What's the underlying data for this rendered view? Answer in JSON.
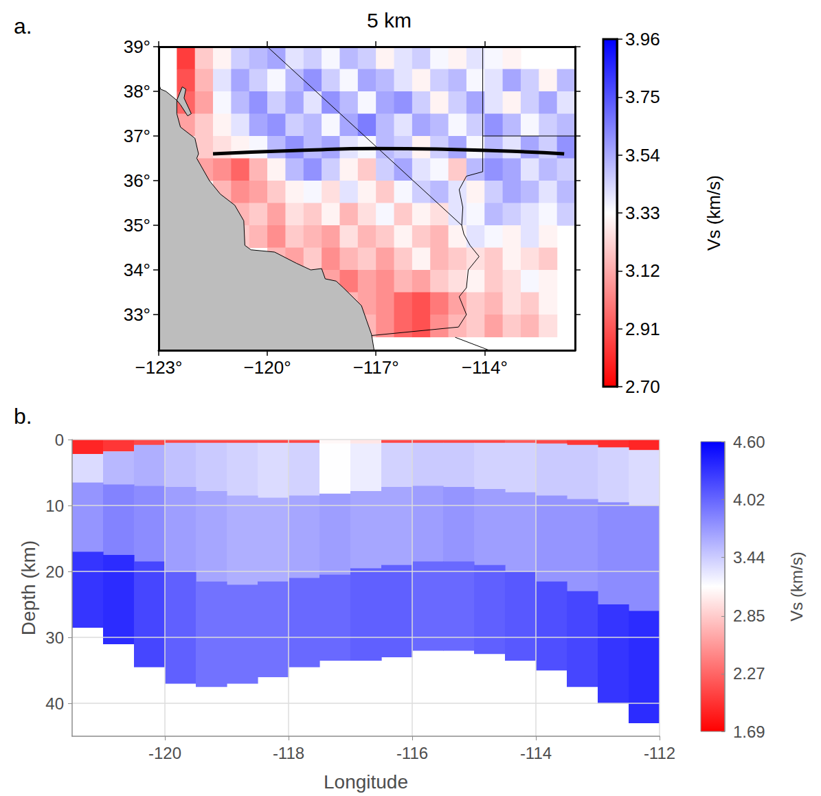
{
  "chart_data": [
    {
      "type": "map",
      "panel": "a.",
      "title": "5 km",
      "xlim": [
        -123,
        -111.5
      ],
      "ylim": [
        32.2,
        39.0
      ],
      "xticks": [
        {
          "value": -123,
          "label": "−123°"
        },
        {
          "value": -120,
          "label": "−120°"
        },
        {
          "value": -117,
          "label": "−117°"
        },
        {
          "value": -114,
          "label": "−114°"
        }
      ],
      "yticks": [
        {
          "value": 33,
          "label": "33°"
        },
        {
          "value": 34,
          "label": "34°"
        },
        {
          "value": 35,
          "label": "35°"
        },
        {
          "value": 36,
          "label": "36°"
        },
        {
          "value": 37,
          "label": "37°"
        },
        {
          "value": 38,
          "label": "38°"
        },
        {
          "value": 39,
          "label": "39°"
        }
      ],
      "grid": false,
      "colorbar": {
        "title": "Vs (km/s)",
        "lim": [
          2.7,
          3.96
        ],
        "ticks": [
          {
            "value": 2.7,
            "label": "2.70"
          },
          2.91,
          3.12,
          3.33,
          3.54,
          3.75,
          3.96
        ]
      },
      "lon": [
        -122.25,
        -121.75,
        -121.25,
        -120.75,
        -120.25,
        -119.75,
        -119.25,
        -118.75,
        -118.25,
        -117.75,
        -117.25,
        -116.75,
        -116.25,
        -115.75,
        -115.25,
        -114.75,
        -114.25,
        -113.75,
        -113.25,
        -112.75,
        -112.25,
        -111.75
      ],
      "lat": [
        38.75,
        38.25,
        37.75,
        37.25,
        36.75,
        36.25,
        35.75,
        35.25,
        34.75,
        34.25,
        33.75,
        33.25,
        32.75
      ],
      "values": [
        [
          2.85,
          3.2,
          3.3,
          3.45,
          3.5,
          3.55,
          3.4,
          3.45,
          3.35,
          3.5,
          3.45,
          3.3,
          3.4,
          3.45,
          3.35,
          3.3,
          3.4,
          3.35,
          3.3,
          null,
          null,
          null
        ],
        [
          2.9,
          3.15,
          3.4,
          3.55,
          3.45,
          3.35,
          3.5,
          3.6,
          3.45,
          3.35,
          3.55,
          3.5,
          3.4,
          3.3,
          3.45,
          3.5,
          3.35,
          3.4,
          3.55,
          3.45,
          3.3,
          3.5
        ],
        [
          2.95,
          3.1,
          3.35,
          3.5,
          3.6,
          3.45,
          3.55,
          3.4,
          3.6,
          3.5,
          3.35,
          3.55,
          3.6,
          3.45,
          3.3,
          3.45,
          3.55,
          3.4,
          3.3,
          3.45,
          3.55,
          3.4
        ],
        [
          3.1,
          3.2,
          3.3,
          3.4,
          3.55,
          3.6,
          3.45,
          3.5,
          3.35,
          3.55,
          3.65,
          3.5,
          3.4,
          3.55,
          3.5,
          3.35,
          3.45,
          3.6,
          3.5,
          3.35,
          3.45,
          3.5
        ],
        [
          null,
          3.2,
          3.25,
          3.3,
          3.35,
          3.5,
          3.6,
          3.5,
          3.55,
          3.4,
          3.35,
          3.5,
          3.45,
          3.3,
          3.45,
          3.55,
          3.35,
          3.5,
          3.4,
          3.55,
          3.45,
          3.6
        ],
        [
          null,
          3.1,
          3.05,
          2.95,
          3.15,
          3.3,
          3.5,
          3.6,
          3.45,
          3.3,
          3.2,
          3.45,
          3.55,
          3.4,
          3.35,
          3.2,
          3.5,
          3.6,
          3.55,
          3.4,
          3.5,
          3.45
        ],
        [
          null,
          null,
          3.15,
          3.05,
          3.1,
          3.2,
          3.3,
          3.35,
          3.25,
          3.4,
          3.3,
          3.2,
          3.35,
          3.45,
          3.5,
          3.4,
          3.3,
          3.45,
          3.55,
          3.5,
          3.4,
          3.5
        ],
        [
          null,
          null,
          null,
          3.15,
          3.2,
          3.1,
          3.25,
          3.2,
          3.3,
          3.15,
          3.25,
          3.35,
          3.2,
          3.3,
          3.25,
          3.4,
          3.35,
          3.5,
          3.45,
          3.4,
          3.35,
          3.45
        ],
        [
          null,
          null,
          null,
          3.2,
          3.15,
          3.05,
          3.2,
          3.15,
          3.1,
          3.25,
          3.15,
          3.2,
          3.3,
          3.2,
          3.15,
          3.3,
          3.4,
          3.35,
          3.3,
          3.4,
          3.3,
          null
        ],
        [
          null,
          null,
          null,
          null,
          null,
          3.15,
          3.1,
          3.2,
          3.05,
          3.15,
          3.2,
          3.1,
          3.2,
          3.3,
          3.15,
          3.2,
          3.25,
          3.2,
          3.3,
          3.25,
          3.2,
          null
        ],
        [
          null,
          null,
          null,
          null,
          null,
          null,
          null,
          3.2,
          3.1,
          3.0,
          3.1,
          3.05,
          3.15,
          3.1,
          3.2,
          3.25,
          3.3,
          3.2,
          3.25,
          3.35,
          3.3,
          null
        ],
        [
          null,
          null,
          null,
          null,
          null,
          null,
          null,
          null,
          null,
          3.15,
          3.1,
          3.05,
          2.95,
          2.9,
          3.0,
          3.1,
          3.2,
          3.15,
          3.25,
          3.2,
          3.3,
          null
        ],
        [
          null,
          null,
          null,
          null,
          null,
          null,
          null,
          null,
          null,
          null,
          3.15,
          3.05,
          2.95,
          2.9,
          3.05,
          3.15,
          3.2,
          3.1,
          3.2,
          3.15,
          3.25,
          null
        ]
      ],
      "ocean": [
        [
          [
            -123,
            38.2
          ],
          [
            -122.95,
            38.05
          ],
          [
            -122.8,
            38.0
          ],
          [
            -122.5,
            37.8
          ],
          [
            -122.5,
            37.5
          ],
          [
            -122.4,
            37.2
          ],
          [
            -122.0,
            36.95
          ],
          [
            -121.9,
            36.6
          ],
          [
            -121.95,
            36.5
          ],
          [
            -121.6,
            36.0
          ],
          [
            -121.3,
            35.7
          ],
          [
            -120.9,
            35.45
          ],
          [
            -120.65,
            35.1
          ],
          [
            -120.62,
            34.55
          ],
          [
            -120.45,
            34.45
          ],
          [
            -119.8,
            34.4
          ],
          [
            -119.2,
            34.15
          ],
          [
            -118.8,
            34.0
          ],
          [
            -118.5,
            34.03
          ],
          [
            -118.4,
            33.8
          ],
          [
            -118.1,
            33.75
          ],
          [
            -117.9,
            33.6
          ],
          [
            -117.4,
            33.2
          ],
          [
            -117.25,
            32.85
          ],
          [
            -117.12,
            32.55
          ],
          [
            -117.05,
            32.2
          ],
          [
            -123,
            32.2
          ]
        ],
        [
          [
            -122.5,
            37.8
          ],
          [
            -122.35,
            38.1
          ],
          [
            -122.25,
            38.05
          ],
          [
            -122.3,
            37.85
          ],
          [
            -122.1,
            37.5
          ],
          [
            -122.2,
            37.45
          ],
          [
            -122.4,
            37.7
          ]
        ]
      ],
      "borders": [
        [
          [
            -120.0,
            39.0
          ],
          [
            -114.63,
            35.0
          ]
        ],
        [
          [
            -114.63,
            35.0
          ],
          [
            -114.57,
            34.8
          ],
          [
            -114.4,
            34.55
          ],
          [
            -114.15,
            34.3
          ],
          [
            -114.45,
            34.0
          ],
          [
            -114.5,
            33.6
          ],
          [
            -114.7,
            33.4
          ],
          [
            -114.5,
            33.0
          ],
          [
            -114.72,
            32.72
          ]
        ],
        [
          [
            -114.63,
            35.0
          ],
          [
            -114.6,
            35.4
          ],
          [
            -114.7,
            35.8
          ],
          [
            -114.5,
            36.1
          ],
          [
            -114.05,
            36.2
          ],
          [
            -114.05,
            39.0
          ]
        ],
        [
          [
            -114.05,
            37.0
          ],
          [
            -111.5,
            37.0
          ]
        ],
        [
          [
            -117.12,
            32.53
          ],
          [
            -114.72,
            32.72
          ]
        ],
        [
          [
            -114.81,
            32.49
          ],
          [
            -113.87,
            32.2
          ]
        ]
      ],
      "profile": [
        [
          -121.5,
          36.6
        ],
        [
          -119,
          36.68
        ],
        [
          -117,
          36.72
        ],
        [
          -115,
          36.7
        ],
        [
          -113,
          36.65
        ],
        [
          -111.8,
          36.6
        ]
      ]
    },
    {
      "type": "heatmap",
      "panel": "b.",
      "xlabel": "Longitude",
      "ylabel": "Depth (km)",
      "xlim": [
        -121.5,
        -112
      ],
      "ylim": [
        0,
        45
      ],
      "xticks": [
        -120,
        -118,
        -116,
        -114,
        -112
      ],
      "yticks": [
        0,
        10,
        20,
        30,
        40
      ],
      "grid": true,
      "colorbar": {
        "title": "Vs (km/s)",
        "lim": [
          1.69,
          4.6
        ],
        "ticks": [
          1.69,
          2.27,
          2.85,
          3.44,
          4.02,
          {
            "value": 4.6,
            "label": "4.60"
          }
        ]
      },
      "x": [
        -121.25,
        -120.75,
        -120.25,
        -119.75,
        -119.25,
        -118.75,
        -118.25,
        -117.75,
        -117.25,
        -116.75,
        -116.25,
        -115.75,
        -115.25,
        -114.75,
        -114.25,
        -113.75,
        -113.25,
        -112.75,
        -112.25
      ],
      "interfaces": [
        [
          0,
          0,
          0,
          0,
          0,
          0,
          0,
          0,
          0,
          0,
          0,
          0,
          0,
          0,
          0,
          0,
          0,
          0,
          0
        ],
        [
          2.2,
          1.8,
          0.8,
          0.5,
          0.5,
          0.5,
          0.5,
          0.5,
          0.6,
          0.6,
          0.5,
          0.5,
          0.5,
          0.5,
          0.5,
          0.6,
          0.8,
          1.2,
          1.6
        ],
        [
          6.5,
          6.8,
          7,
          7.2,
          7.8,
          8.5,
          8.8,
          8.5,
          8.2,
          7.8,
          7.2,
          7,
          7.2,
          7.5,
          8,
          8.5,
          9,
          9.5,
          10
        ],
        [
          17,
          17.5,
          18.5,
          20,
          21.5,
          22,
          21.5,
          21,
          20.5,
          19.5,
          19,
          18.5,
          18.5,
          19,
          20,
          21.5,
          23,
          25,
          26
        ],
        [
          28.5,
          31,
          34.5,
          37,
          37.5,
          37,
          36,
          34.5,
          33.5,
          33.5,
          33,
          32,
          32,
          32.5,
          33.5,
          35,
          37.5,
          40,
          43
        ]
      ],
      "values": [
        [
          1.9,
          2.0,
          2.1,
          2.1,
          2.1,
          2.1,
          2.1,
          2.1,
          3.1,
          3.0,
          2.1,
          2.1,
          2.1,
          2.1,
          2.2,
          2.1,
          2.0,
          1.95,
          1.9
        ],
        [
          3.35,
          3.55,
          3.6,
          3.5,
          3.45,
          3.4,
          3.35,
          3.4,
          3.15,
          3.25,
          3.4,
          3.45,
          3.45,
          3.4,
          3.4,
          3.45,
          3.45,
          3.4,
          3.35
        ],
        [
          3.75,
          3.85,
          3.8,
          3.7,
          3.65,
          3.6,
          3.6,
          3.65,
          3.7,
          3.65,
          3.65,
          3.7,
          3.75,
          3.7,
          3.7,
          3.75,
          3.75,
          3.8,
          3.8
        ],
        [
          4.3,
          4.35,
          4.2,
          4.05,
          3.95,
          3.95,
          3.95,
          4.0,
          4.0,
          4.05,
          4.05,
          4.0,
          4.0,
          4.05,
          4.1,
          4.15,
          4.2,
          4.3,
          4.35
        ]
      ]
    }
  ]
}
